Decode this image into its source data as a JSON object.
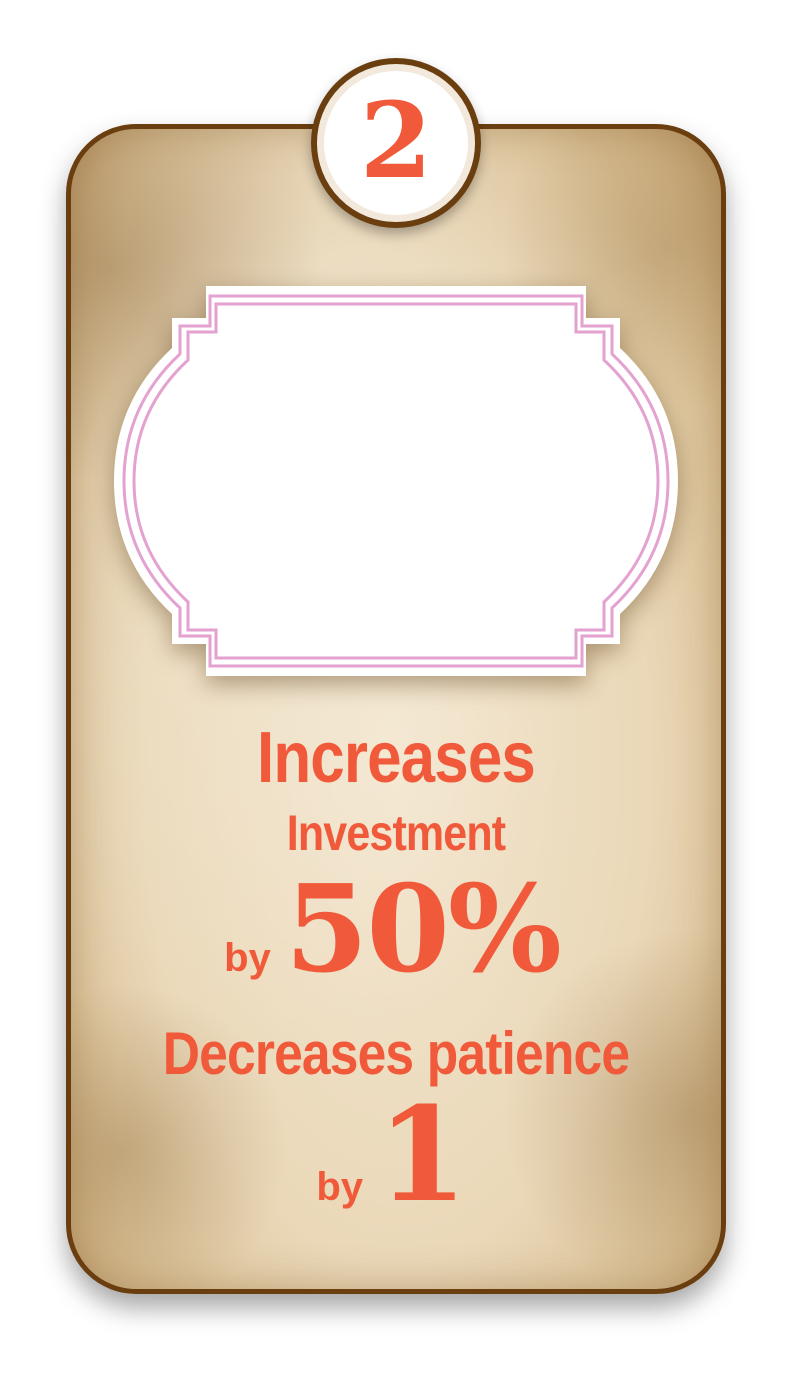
{
  "card": {
    "number": "2",
    "effect_1": {
      "verb": "Increases",
      "target": "Investment",
      "by_label": "by",
      "value": "50%"
    },
    "effect_2": {
      "text": "Decreases patience",
      "by_label": "by",
      "value": "1"
    }
  },
  "colors": {
    "accent": "#f05a3a",
    "border": "#6b3e10",
    "frame_stroke": "#e3a2cf",
    "parchment": "#ead8b8"
  }
}
